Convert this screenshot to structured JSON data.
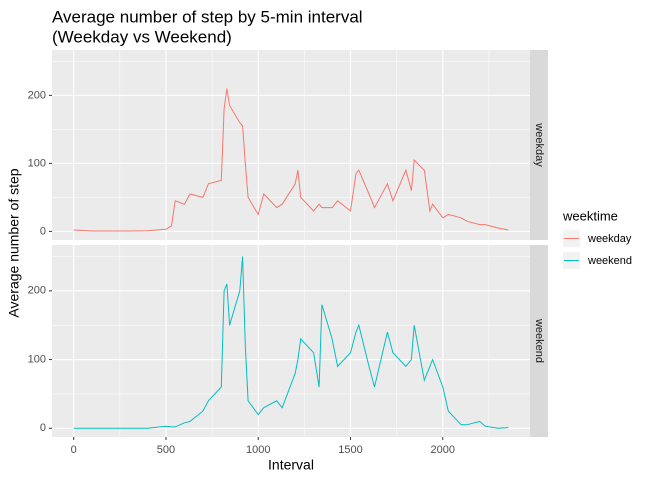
{
  "chart_data": {
    "type": "line",
    "title": [
      "Average number of step by 5-min interval",
      "(Weekday vs Weekend)"
    ],
    "x_label": "Interval",
    "y_label": "Average number of step",
    "legend_title": "weektime",
    "x": [
      0,
      100,
      200,
      300,
      400,
      500,
      530,
      550,
      600,
      630,
      700,
      730,
      800,
      815,
      830,
      845,
      900,
      915,
      930,
      945,
      1000,
      1030,
      1100,
      1130,
      1200,
      1215,
      1230,
      1300,
      1330,
      1345,
      1400,
      1430,
      1500,
      1530,
      1545,
      1600,
      1630,
      1700,
      1730,
      1800,
      1830,
      1845,
      1900,
      1930,
      1945,
      2000,
      2030,
      2100,
      2130,
      2200,
      2230,
      2300,
      2355
    ],
    "series": [
      {
        "name": "weekday",
        "color": "#F8766D",
        "values": [
          2,
          0.5,
          0.5,
          0.5,
          1,
          3,
          8,
          45,
          40,
          55,
          50,
          70,
          75,
          180,
          210,
          185,
          160,
          155,
          100,
          50,
          25,
          55,
          35,
          40,
          70,
          90,
          50,
          30,
          40,
          35,
          35,
          45,
          30,
          85,
          90,
          55,
          35,
          70,
          45,
          90,
          60,
          105,
          90,
          30,
          40,
          20,
          25,
          20,
          15,
          10,
          10,
          5,
          2
        ]
      },
      {
        "name": "weekend",
        "color": "#00BFC4",
        "values": [
          0,
          0,
          0,
          0,
          0,
          3,
          2,
          2,
          8,
          10,
          25,
          40,
          60,
          200,
          210,
          150,
          200,
          250,
          120,
          40,
          20,
          30,
          40,
          30,
          80,
          100,
          130,
          110,
          60,
          180,
          130,
          90,
          110,
          140,
          150,
          90,
          60,
          140,
          110,
          90,
          100,
          150,
          70,
          90,
          100,
          60,
          25,
          5,
          5,
          10,
          3,
          0,
          1
        ]
      }
    ],
    "xlim": [
      -117.75,
      2472.75
    ],
    "xticks": [
      0,
      500,
      1000,
      1500,
      2000
    ],
    "xminor": [
      250,
      750,
      1250,
      1750,
      2250
    ],
    "ylim": [
      -12.7,
      266.7
    ],
    "yticks": [
      0,
      100,
      200
    ],
    "yminor": [
      50,
      150,
      250
    ],
    "grid": true,
    "facet": true,
    "legend_position": "right"
  }
}
